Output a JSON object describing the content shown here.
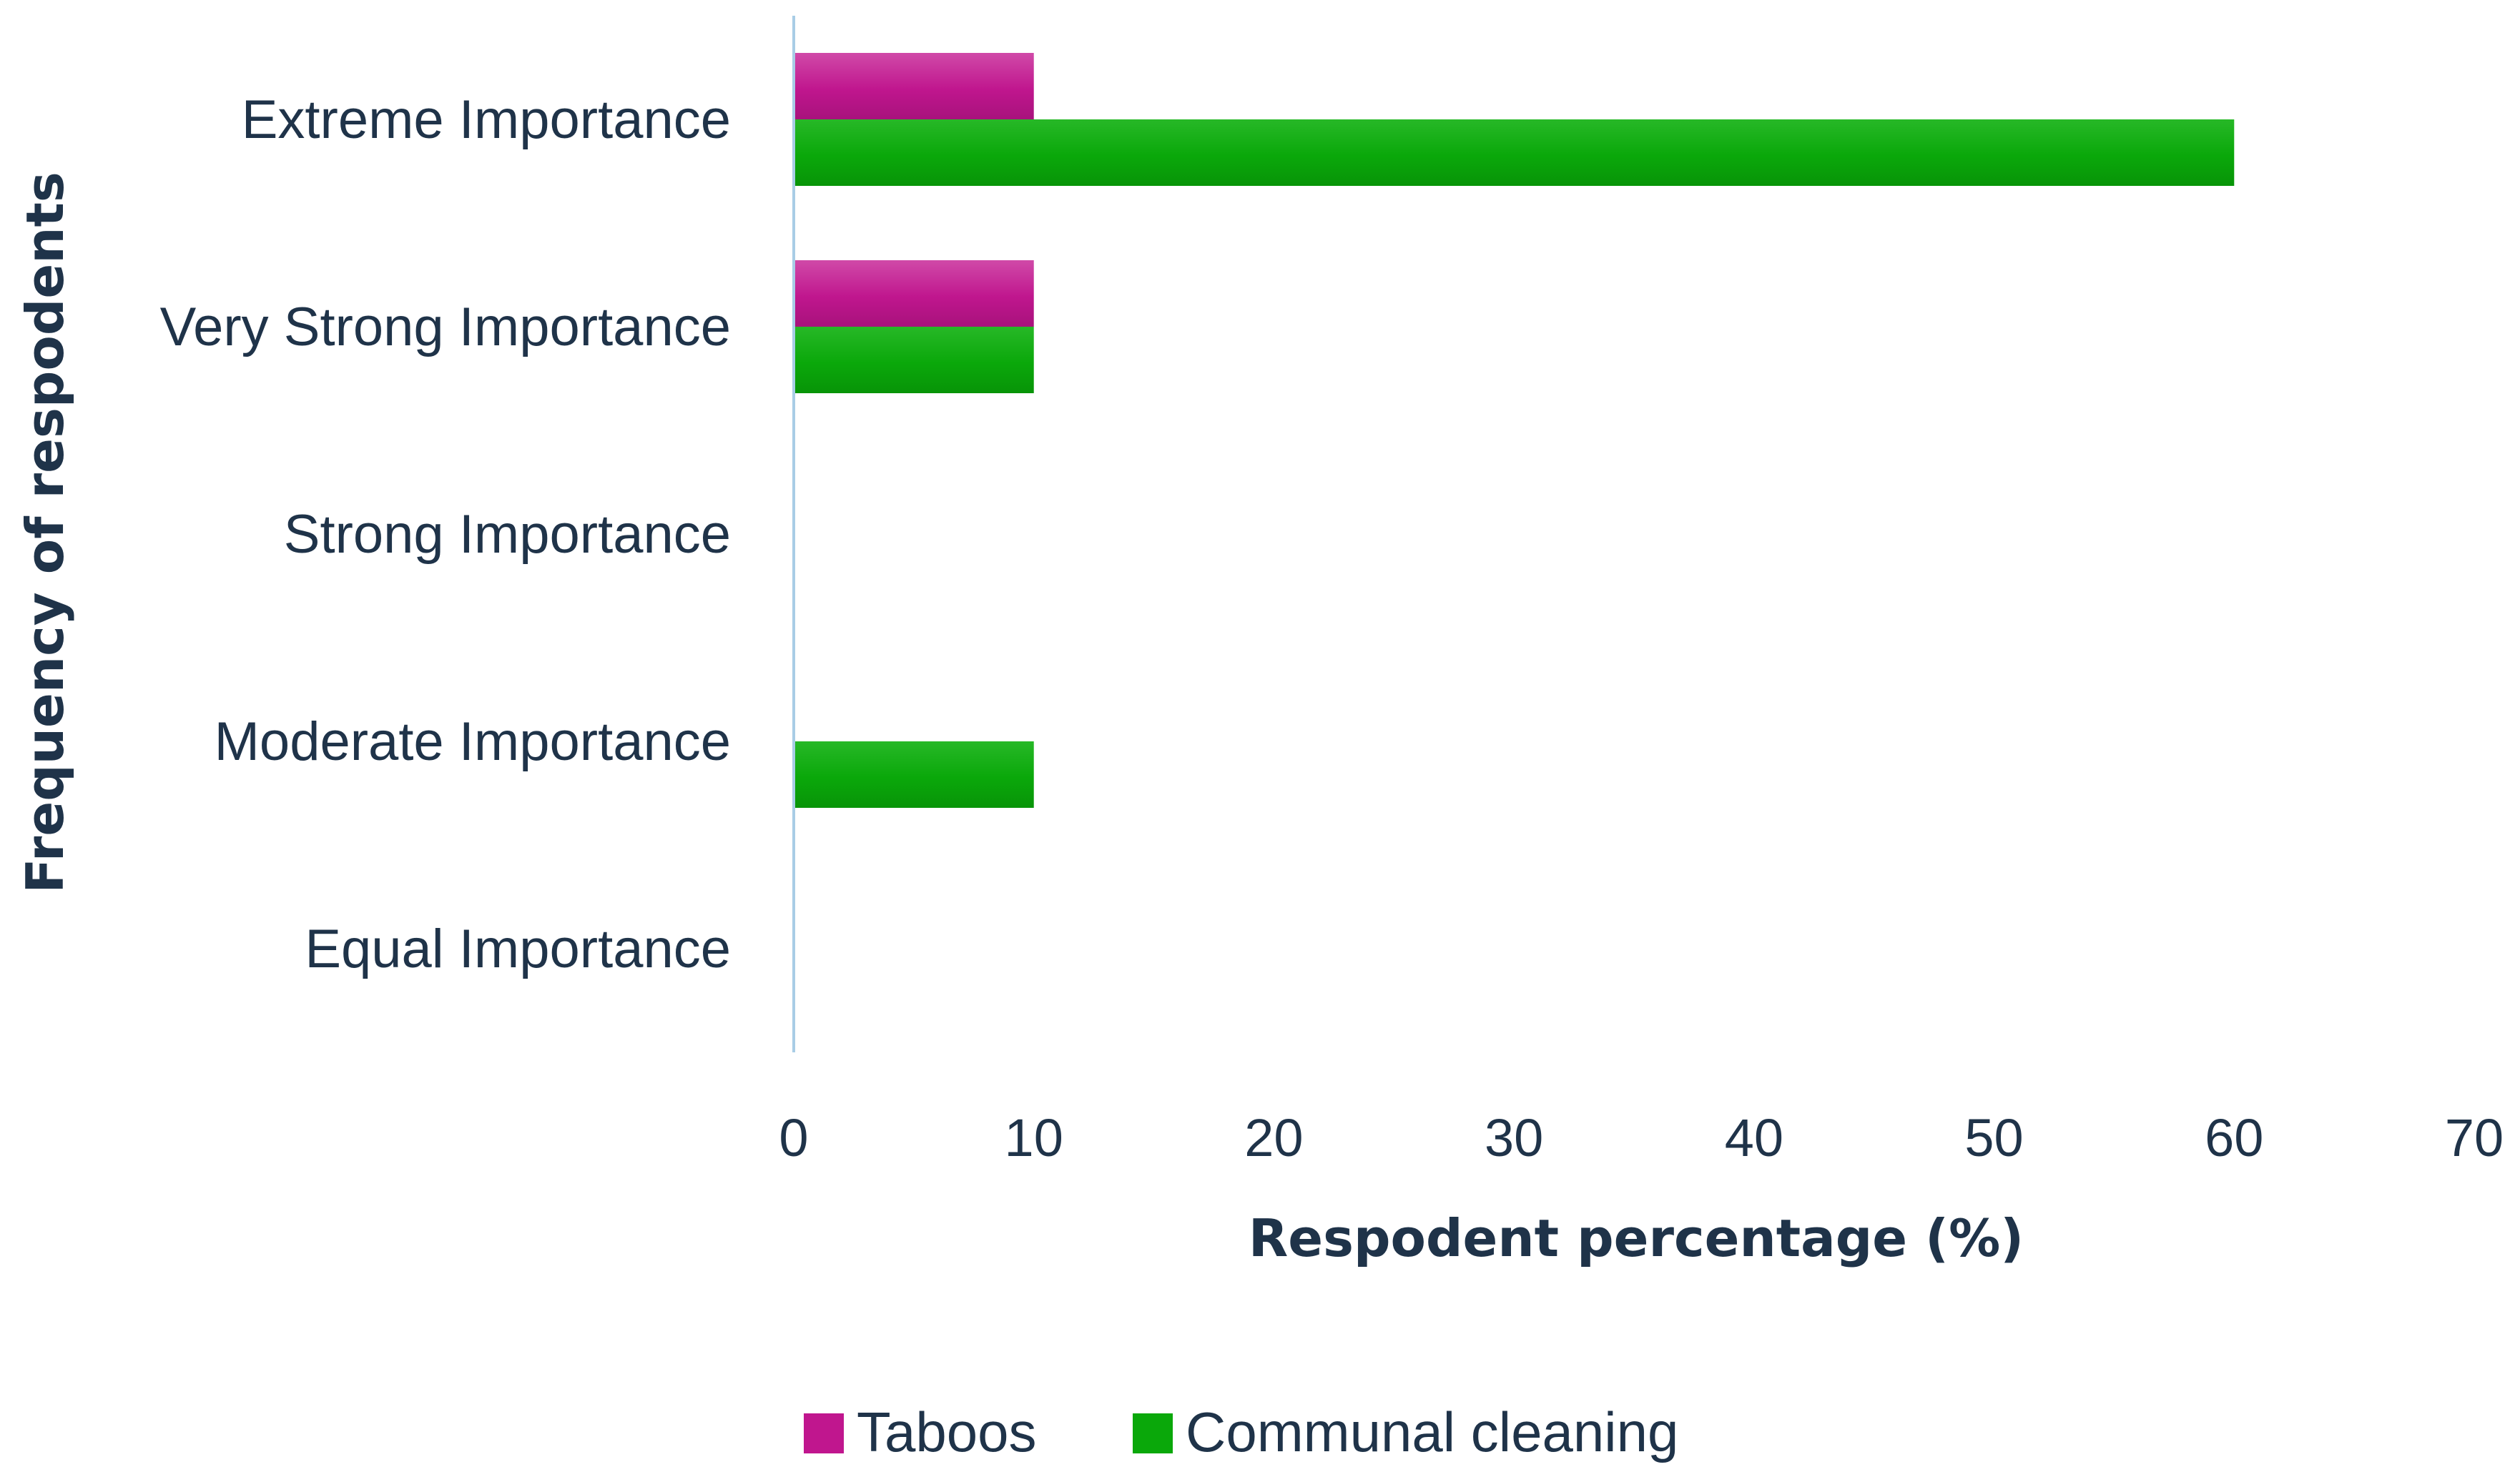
{
  "chart_data": {
    "type": "bar",
    "orientation": "horizontal",
    "categories": [
      "Extreme Importance",
      "Very Strong Importance",
      "Strong Importance",
      "Moderate Importance",
      "Equal Importance"
    ],
    "series": [
      {
        "name": "Taboos",
        "values": [
          10,
          10,
          0,
          0,
          0
        ],
        "color": "#c0168e"
      },
      {
        "name": "Communal cleaning",
        "values": [
          60,
          10,
          0,
          10,
          0
        ],
        "color": "#0aa80a"
      }
    ],
    "xlabel": "Respodent percentage (%)",
    "ylabel": "Frequency of respodents",
    "xlim": [
      0,
      70
    ],
    "xticks": [
      0,
      10,
      20,
      30,
      40,
      50,
      60,
      70
    ],
    "grid": false,
    "legend_position": "bottom-center",
    "axis_line_color": "#a9cde6",
    "text_color": "#1f3349"
  }
}
